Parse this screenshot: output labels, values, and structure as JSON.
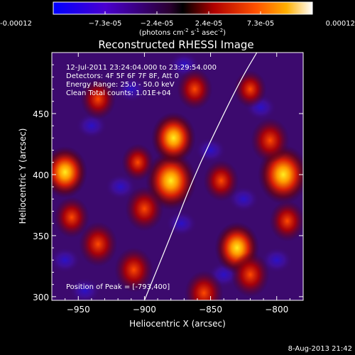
{
  "chart_data": {
    "type": "heatmap",
    "title": "Reconstructed RHESSI Image",
    "xlabel": "Heliocentric X (arcsec)",
    "ylabel": "Heliocentric Y (arcsec)",
    "xlim": [
      -970,
      -780
    ],
    "ylim": [
      297,
      500
    ],
    "x_ticks": [
      -950,
      -900,
      -850,
      -800
    ],
    "y_ticks": [
      300,
      350,
      400,
      450
    ],
    "colorbar": {
      "ticks": [
        "-0.00012",
        "−7.3e-05",
        "−2.4e-05",
        "2.4e-05",
        "7.3e-05",
        "0.00012"
      ],
      "unit_main": "(photons cm",
      "unit_sup1": "-2",
      "unit_mid1": " s",
      "unit_sup2": "-1",
      "unit_mid2": " asec",
      "unit_sup3": "-2",
      "unit_end": ")"
    },
    "annotations": [
      "12-Jul-2011 23:24:04.000 to 23:29:54.000",
      "Detectors: 4F 5F 6F 7F 8F, Att 0",
      "Energy Range: 25.0 - 50.0 keV",
      "Clean    Total counts: 1.01E+04"
    ],
    "peak_label": "Position of Peak = [-793,400]",
    "bright_regions": [
      {
        "x": -880,
        "y": 395,
        "level": 1.0
      },
      {
        "x": -878,
        "y": 430,
        "level": 0.8
      },
      {
        "x": -900,
        "y": 372,
        "level": 0.6
      },
      {
        "x": -795,
        "y": 400,
        "level": 1.0
      },
      {
        "x": -805,
        "y": 428,
        "level": 0.6
      },
      {
        "x": -960,
        "y": 402,
        "level": 0.8
      },
      {
        "x": -935,
        "y": 343,
        "level": 0.6
      },
      {
        "x": -908,
        "y": 322,
        "level": 0.6
      },
      {
        "x": -830,
        "y": 340,
        "level": 0.8
      },
      {
        "x": -820,
        "y": 318,
        "level": 0.6
      },
      {
        "x": -855,
        "y": 303,
        "level": 0.6
      },
      {
        "x": -935,
        "y": 462,
        "level": 0.5
      },
      {
        "x": -862,
        "y": 470,
        "level": 0.5
      },
      {
        "x": -842,
        "y": 395,
        "level": 0.5
      },
      {
        "x": -792,
        "y": 362,
        "level": 0.5
      },
      {
        "x": -905,
        "y": 410,
        "level": 0.4
      },
      {
        "x": -955,
        "y": 365,
        "level": 0.5
      },
      {
        "x": -820,
        "y": 470,
        "level": 0.4
      }
    ],
    "limb_curve": [
      {
        "x": -900,
        "y": 297
      },
      {
        "x": -880,
        "y": 350
      },
      {
        "x": -862,
        "y": 400
      },
      {
        "x": -840,
        "y": 450
      },
      {
        "x": -826,
        "y": 480
      },
      {
        "x": -815,
        "y": 500
      }
    ]
  },
  "footer": {
    "date": "8-Aug-2013 21:42"
  }
}
